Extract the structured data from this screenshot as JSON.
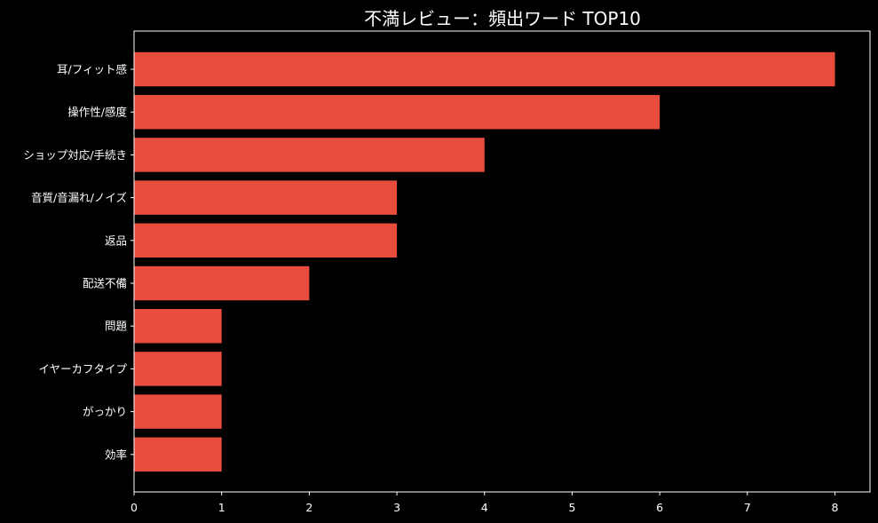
{
  "chart_data": {
    "type": "bar",
    "orientation": "horizontal",
    "title": "不満レビュー：頻出ワード TOP10",
    "xlabel": "",
    "ylabel": "",
    "categories": [
      "耳/フィット感",
      "操作性/感度",
      "ショップ対応/手続き",
      "音質/音漏れ/ノイズ",
      "返品",
      "配送不備",
      "問題",
      "イヤーカフタイプ",
      "がっかり",
      "効率"
    ],
    "values": [
      8,
      6,
      4,
      3,
      3,
      2,
      1,
      1,
      1,
      1
    ],
    "xlim": [
      0,
      8.4
    ],
    "xticks": [
      "0",
      "1",
      "2",
      "3",
      "4",
      "5",
      "6",
      "7",
      "8"
    ],
    "bar_color": "#e74c3c",
    "background": "#000000",
    "text_color": "#ffffff",
    "grid": false,
    "legend": "none"
  }
}
